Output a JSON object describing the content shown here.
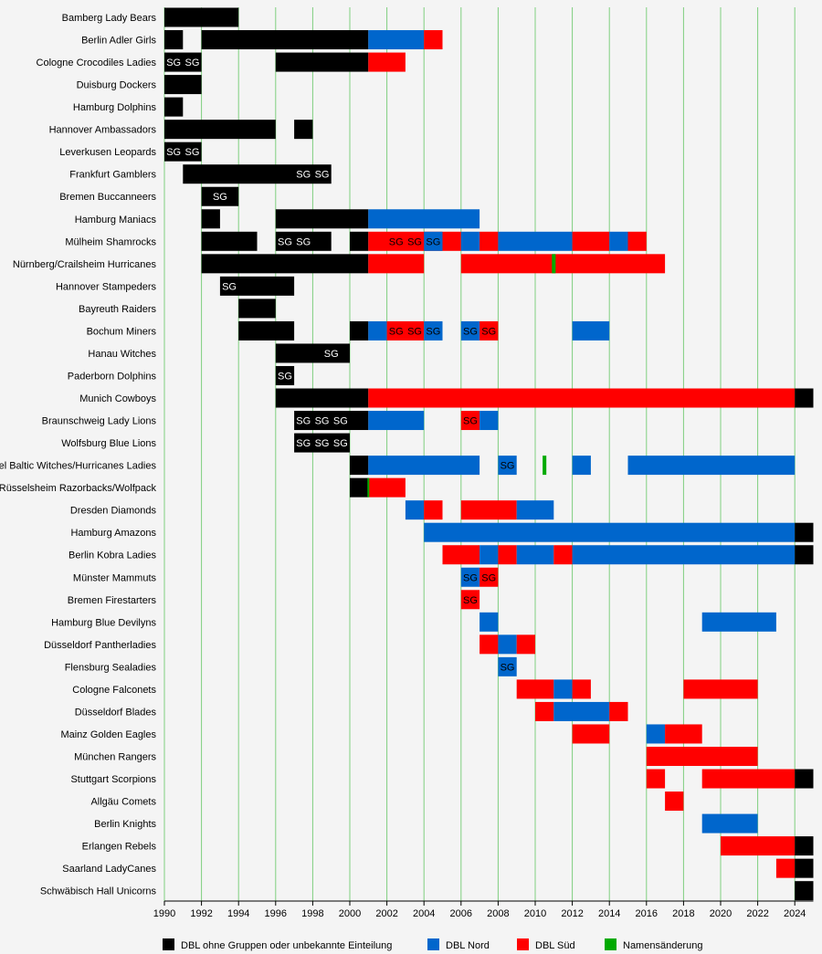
{
  "chart_data": {
    "type": "timeline",
    "x_range": [
      1990,
      2025
    ],
    "x_ticks": [
      1990,
      1992,
      1994,
      1996,
      1998,
      2000,
      2002,
      2004,
      2006,
      2008,
      2010,
      2012,
      2014,
      2016,
      2018,
      2020,
      2022,
      2024
    ],
    "grid": "vertical",
    "colors": {
      "K": "#000000",
      "B": "#0066cc",
      "R": "#ff0000",
      "G": "#00aa00"
    },
    "legend": [
      {
        "key": "K",
        "label": "DBL ohne Gruppen oder unbekannte Einteilung"
      },
      {
        "key": "B",
        "label": "DBL Nord"
      },
      {
        "key": "R",
        "label": "DBL Süd"
      },
      {
        "key": "G",
        "label": "Namensänderung"
      }
    ],
    "teams": [
      {
        "name": "Bamberg Lady Bears",
        "segments": [
          [
            1990,
            1994,
            "K"
          ]
        ],
        "sg": []
      },
      {
        "name": "Berlin Adler Girls",
        "segments": [
          [
            1990,
            1991,
            "K"
          ],
          [
            1992,
            2001,
            "K"
          ],
          [
            2001,
            2004,
            "B"
          ],
          [
            2004,
            2005,
            "R"
          ]
        ],
        "sg": []
      },
      {
        "name": "Cologne Crocodiles Ladies",
        "segments": [
          [
            1990,
            1992,
            "K"
          ],
          [
            1996,
            2001,
            "K"
          ],
          [
            2001,
            2003,
            "R"
          ]
        ],
        "sg": [
          [
            1990,
            1991,
            "w"
          ],
          [
            1991,
            1992,
            "w"
          ]
        ]
      },
      {
        "name": "Duisburg Dockers",
        "segments": [
          [
            1990,
            1992,
            "K"
          ]
        ],
        "sg": []
      },
      {
        "name": "Hamburg Dolphins",
        "segments": [
          [
            1990,
            1991,
            "K"
          ]
        ],
        "sg": []
      },
      {
        "name": "Hannover Ambassadors",
        "segments": [
          [
            1990,
            1996,
            "K"
          ],
          [
            1997,
            1998,
            "K"
          ]
        ],
        "sg": []
      },
      {
        "name": "Leverkusen Leopards",
        "segments": [
          [
            1990,
            1992,
            "K"
          ]
        ],
        "sg": [
          [
            1990,
            1991,
            "w"
          ],
          [
            1991,
            1992,
            "w"
          ]
        ]
      },
      {
        "name": "Frankfurt Gamblers",
        "segments": [
          [
            1991,
            1999,
            "K"
          ]
        ],
        "sg": [
          [
            1997,
            1998,
            "w"
          ],
          [
            1998,
            1999,
            "w"
          ]
        ]
      },
      {
        "name": "Bremen Buccanneers",
        "segments": [
          [
            1992,
            1994,
            "K"
          ]
        ],
        "sg": [
          [
            1992.5,
            1993.5,
            "w"
          ]
        ]
      },
      {
        "name": "Hamburg Maniacs",
        "segments": [
          [
            1992,
            1993,
            "K"
          ],
          [
            1996,
            2001,
            "K"
          ],
          [
            2001,
            2007,
            "B"
          ]
        ],
        "sg": []
      },
      {
        "name": "Mülheim Shamrocks",
        "segments": [
          [
            1992,
            1995,
            "K"
          ],
          [
            1996,
            1999,
            "K"
          ],
          [
            2000,
            2001,
            "K"
          ],
          [
            2001,
            2005,
            "R"
          ],
          [
            2004,
            2005,
            "B"
          ],
          [
            2005,
            2006,
            "R"
          ],
          [
            2006,
            2007,
            "B"
          ],
          [
            2007,
            2008,
            "R"
          ],
          [
            2008,
            2012,
            "B"
          ],
          [
            2012,
            2014,
            "R"
          ],
          [
            2014,
            2015,
            "B"
          ],
          [
            2015,
            2016,
            "R"
          ]
        ],
        "sg": [
          [
            1996,
            1997,
            "w"
          ],
          [
            1997,
            1998,
            "w"
          ],
          [
            2002,
            2003,
            "k"
          ],
          [
            2003,
            2004,
            "k"
          ],
          [
            2004,
            2005,
            "k"
          ]
        ]
      },
      {
        "name": "Nürnberg/Crailsheim Hurricanes",
        "segments": [
          [
            1992,
            2001,
            "K"
          ],
          [
            2001,
            2004,
            "R"
          ],
          [
            2006,
            2017,
            "R"
          ],
          [
            2010.9,
            2011.1,
            "G"
          ]
        ],
        "sg": []
      },
      {
        "name": "Hannover Stampeders",
        "segments": [
          [
            1993,
            1997,
            "K"
          ]
        ],
        "sg": [
          [
            1993,
            1994,
            "w"
          ]
        ]
      },
      {
        "name": "Bayreuth Raiders",
        "segments": [
          [
            1994,
            1996,
            "K"
          ]
        ],
        "sg": []
      },
      {
        "name": "Bochum Miners",
        "segments": [
          [
            1994,
            1997,
            "K"
          ],
          [
            2000,
            2001,
            "K"
          ],
          [
            2001,
            2002,
            "B"
          ],
          [
            2002,
            2004,
            "R"
          ],
          [
            2004,
            2005,
            "B"
          ],
          [
            2006,
            2007,
            "B"
          ],
          [
            2007,
            2008,
            "R"
          ],
          [
            2012,
            2014,
            "B"
          ]
        ],
        "sg": [
          [
            2002,
            2003,
            "k"
          ],
          [
            2003,
            2004,
            "k"
          ],
          [
            2004,
            2005,
            "k"
          ],
          [
            2006,
            2007,
            "k"
          ],
          [
            2007,
            2008,
            "k"
          ]
        ]
      },
      {
        "name": "Hanau Witches",
        "segments": [
          [
            1996,
            2000,
            "K"
          ]
        ],
        "sg": [
          [
            1998,
            2000,
            "w"
          ]
        ]
      },
      {
        "name": "Paderborn Dolphins",
        "segments": [
          [
            1996,
            1997,
            "K"
          ]
        ],
        "sg": [
          [
            1996,
            1997,
            "w"
          ]
        ]
      },
      {
        "name": "Munich Cowboys",
        "segments": [
          [
            1996,
            2001,
            "K"
          ],
          [
            2001,
            2024,
            "R"
          ],
          [
            2024,
            2025,
            "K"
          ]
        ],
        "sg": []
      },
      {
        "name": "Braunschweig Lady Lions",
        "segments": [
          [
            1997,
            2001,
            "K"
          ],
          [
            2001,
            2004,
            "B"
          ],
          [
            2006,
            2007,
            "R"
          ],
          [
            2007,
            2008,
            "B"
          ]
        ],
        "sg": [
          [
            1997,
            1998,
            "w"
          ],
          [
            1998,
            1999,
            "w"
          ],
          [
            1999,
            2000,
            "w"
          ],
          [
            2006,
            2007,
            "k"
          ]
        ]
      },
      {
        "name": "Wolfsburg Blue Lions",
        "segments": [
          [
            1997,
            2000,
            "K"
          ]
        ],
        "sg": [
          [
            1997,
            1998,
            "w"
          ],
          [
            1998,
            1999,
            "w"
          ],
          [
            1999,
            2000,
            "w"
          ]
        ]
      },
      {
        "name": "Kiel Baltic Witches/Hurricanes Ladies",
        "segments": [
          [
            2000,
            2001,
            "K"
          ],
          [
            2001,
            2007,
            "B"
          ],
          [
            2008,
            2009,
            "B"
          ],
          [
            2010.4,
            2010.6,
            "G"
          ],
          [
            2012,
            2013,
            "B"
          ],
          [
            2015,
            2024,
            "B"
          ]
        ],
        "sg": [
          [
            2008,
            2009,
            "k"
          ]
        ]
      },
      {
        "name": "Rüsselsheim Razorbacks/Wolfpack",
        "segments": [
          [
            2000,
            2001,
            "K"
          ],
          [
            2001,
            2003,
            "R"
          ],
          [
            2000.95,
            2001.05,
            "G"
          ]
        ],
        "sg": []
      },
      {
        "name": "Dresden Diamonds",
        "segments": [
          [
            2003,
            2004,
            "B"
          ],
          [
            2004,
            2005,
            "R"
          ],
          [
            2006,
            2009,
            "R"
          ],
          [
            2009,
            2011,
            "B"
          ]
        ],
        "sg": []
      },
      {
        "name": "Hamburg Amazons",
        "segments": [
          [
            2004,
            2024,
            "B"
          ],
          [
            2024,
            2025,
            "K"
          ]
        ],
        "sg": []
      },
      {
        "name": "Berlin Kobra Ladies",
        "segments": [
          [
            2005,
            2007,
            "R"
          ],
          [
            2007,
            2008,
            "B"
          ],
          [
            2008,
            2009,
            "R"
          ],
          [
            2009,
            2011,
            "B"
          ],
          [
            2011,
            2012,
            "R"
          ],
          [
            2012,
            2024,
            "B"
          ],
          [
            2024,
            2025,
            "K"
          ]
        ],
        "sg": []
      },
      {
        "name": "Münster Mammuts",
        "segments": [
          [
            2006,
            2007,
            "B"
          ],
          [
            2007,
            2008,
            "R"
          ]
        ],
        "sg": [
          [
            2006,
            2007,
            "k"
          ],
          [
            2007,
            2008,
            "k"
          ]
        ]
      },
      {
        "name": "Bremen Firestarters",
        "segments": [
          [
            2006,
            2007,
            "R"
          ]
        ],
        "sg": [
          [
            2006,
            2007,
            "k"
          ]
        ]
      },
      {
        "name": "Hamburg Blue Devilyns",
        "segments": [
          [
            2007,
            2008,
            "B"
          ],
          [
            2019,
            2023,
            "B"
          ]
        ],
        "sg": []
      },
      {
        "name": "Düsseldorf Pantherladies",
        "segments": [
          [
            2007,
            2008,
            "R"
          ],
          [
            2008,
            2009,
            "B"
          ],
          [
            2009,
            2010,
            "R"
          ]
        ],
        "sg": []
      },
      {
        "name": "Flensburg Sealadies",
        "segments": [
          [
            2008,
            2009,
            "B"
          ]
        ],
        "sg": [
          [
            2008,
            2009,
            "k"
          ]
        ]
      },
      {
        "name": "Cologne Falconets",
        "segments": [
          [
            2009,
            2011,
            "R"
          ],
          [
            2011,
            2012,
            "B"
          ],
          [
            2012,
            2013,
            "R"
          ],
          [
            2018,
            2022,
            "R"
          ]
        ],
        "sg": []
      },
      {
        "name": "Düsseldorf Blades",
        "segments": [
          [
            2010,
            2011,
            "R"
          ],
          [
            2011,
            2014,
            "B"
          ],
          [
            2014,
            2015,
            "R"
          ]
        ],
        "sg": []
      },
      {
        "name": "Mainz Golden Eagles",
        "segments": [
          [
            2012,
            2014,
            "R"
          ],
          [
            2016,
            2017,
            "B"
          ],
          [
            2017,
            2019,
            "R"
          ]
        ],
        "sg": []
      },
      {
        "name": "München Rangers",
        "segments": [
          [
            2016,
            2022,
            "R"
          ]
        ],
        "sg": []
      },
      {
        "name": "Stuttgart Scorpions",
        "segments": [
          [
            2016,
            2017,
            "R"
          ],
          [
            2019,
            2024,
            "R"
          ],
          [
            2024,
            2025,
            "K"
          ]
        ],
        "sg": []
      },
      {
        "name": "Allgäu Comets",
        "segments": [
          [
            2017,
            2018,
            "R"
          ]
        ],
        "sg": []
      },
      {
        "name": "Berlin Knights",
        "segments": [
          [
            2019,
            2022,
            "B"
          ]
        ],
        "sg": []
      },
      {
        "name": "Erlangen Rebels",
        "segments": [
          [
            2020,
            2024,
            "R"
          ],
          [
            2024,
            2025,
            "K"
          ]
        ],
        "sg": []
      },
      {
        "name": "Saarland LadyCanes",
        "segments": [
          [
            2023,
            2024,
            "R"
          ],
          [
            2024,
            2025,
            "K"
          ]
        ],
        "sg": []
      },
      {
        "name": "Schwäbisch Hall Unicorns",
        "segments": [
          [
            2024,
            2025,
            "K"
          ]
        ],
        "sg": []
      }
    ],
    "sg_text": "SG"
  }
}
